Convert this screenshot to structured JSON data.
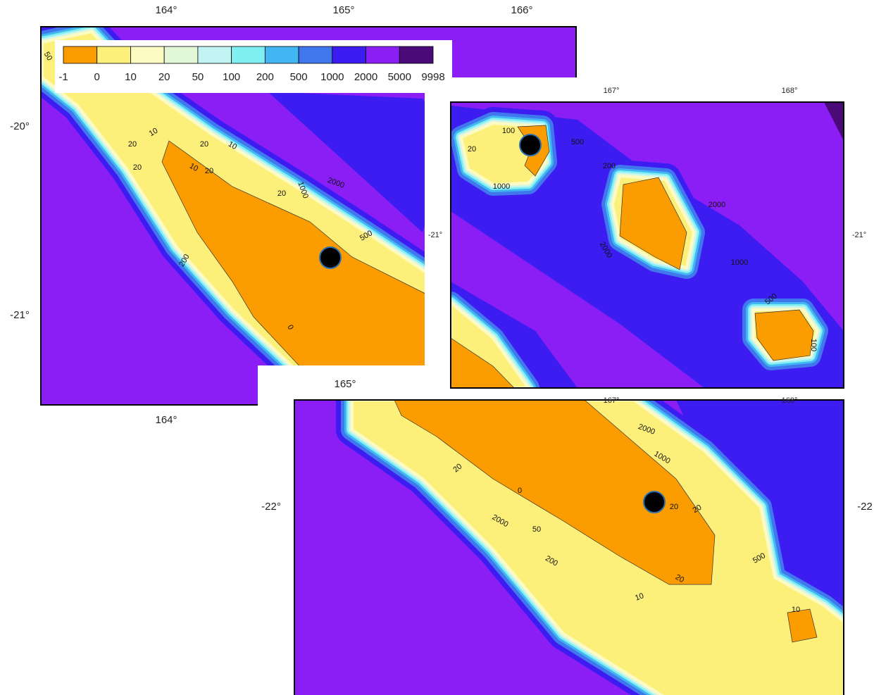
{
  "colorbar": {
    "levels": [
      -1,
      0,
      10,
      20,
      50,
      100,
      200,
      500,
      1000,
      2000,
      5000,
      9998
    ],
    "colors": [
      "#fb9c00",
      "#fdf07a",
      "#fdfbc4",
      "#e2f7d6",
      "#c2f4f4",
      "#80eff2",
      "#42b6f2",
      "#4177ee",
      "#3c1cf0",
      "#8a1ef5",
      "#4a0a78"
    ]
  },
  "panels": [
    {
      "top_labels": [
        "164°",
        "165°",
        "166°"
      ],
      "left_labels": [
        "-20°",
        "-21°"
      ],
      "bottom_labels": [
        "164°"
      ],
      "contour_labels": [
        "50",
        "20",
        "10",
        "20",
        "10",
        "10",
        "20",
        "2000",
        "1000",
        "20",
        "500",
        "200",
        "0",
        "20"
      ]
    },
    {
      "top_labels": [
        "167°",
        "168°"
      ],
      "left_labels": [
        "-21°"
      ],
      "right_labels": [
        "-21°"
      ],
      "bottom_labels": [
        "167°",
        "168°"
      ],
      "contour_labels": [
        "100",
        "20",
        "1000",
        "500",
        "200",
        "2000",
        "2000",
        "1000",
        "500",
        "100"
      ]
    },
    {
      "top_labels": [
        "165°"
      ],
      "left_labels": [
        "-22°"
      ],
      "right_labels": [
        "-22"
      ],
      "contour_labels": [
        "2000",
        "1000",
        "20",
        "20",
        "500",
        "200",
        "10",
        "20",
        "10",
        "50",
        "2000",
        "20",
        "0"
      ]
    }
  ]
}
